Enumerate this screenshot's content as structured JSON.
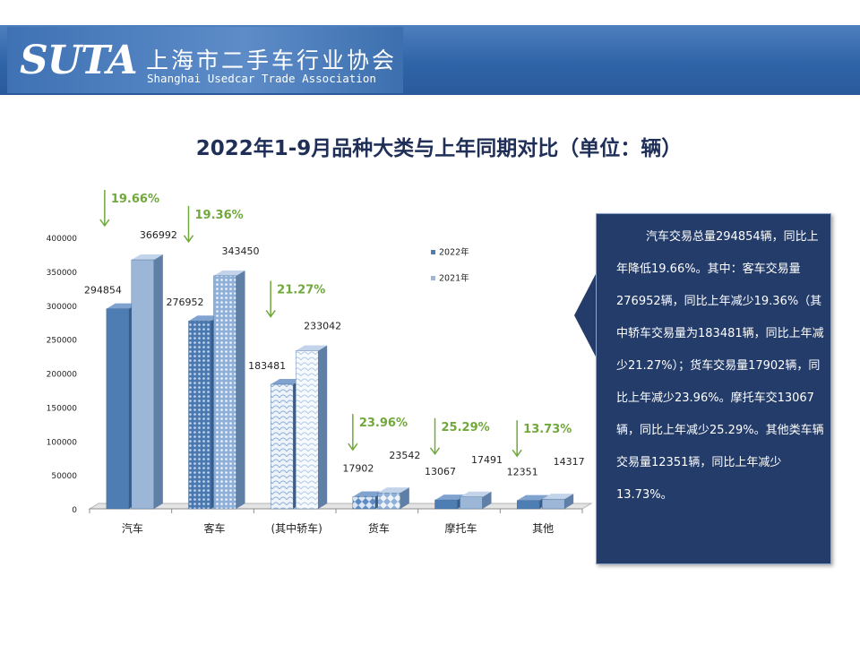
{
  "header": {
    "logo_mark": "SUTA",
    "org_name_cn": "上海市二手车行业协会",
    "org_name_en": "Shanghai Usedcar Trade Association"
  },
  "page_title": "2022年1-9月品种大类与上年同期对比（单位：辆）",
  "chart_data": {
    "type": "bar",
    "title": "2022年1-9月品种大类与上年同期对比（单位：辆）",
    "categories": [
      "汽车",
      "客车",
      "(其中轿车)",
      "货车",
      "摩托车",
      "其他"
    ],
    "series": [
      {
        "name": "2022年",
        "values": [
          294854,
          276952,
          183481,
          17902,
          13067,
          12351
        ]
      },
      {
        "name": "2021年",
        "values": [
          366992,
          343450,
          233042,
          23542,
          17491,
          14317
        ]
      }
    ],
    "change_labels": [
      "19.66%",
      "19.36%",
      "21.27%",
      "23.96%",
      "25.29%",
      "13.73%"
    ],
    "change_direction": "down",
    "ylim": [
      0,
      400000
    ],
    "yticks": [
      0,
      50000,
      100000,
      150000,
      200000,
      250000,
      300000,
      350000,
      400000
    ],
    "grid": false,
    "legend_position": "upper-right",
    "colors": {
      "series_2022": "#4e7db3",
      "series_2021": "#9cb6d8",
      "change": "#70a83c"
    }
  },
  "callout": {
    "text": "汽车交易总量294854辆，同比上年降低19.66%。其中：客车交易量276952辆，同比上年减少19.36%（其中轿车交易量为183481辆，同比上年减少21.27%）；货车交易量17902辆，同比上年减少23.96%。摩托车交13067辆，同比上年减少25.29%。其他类车辆交易量12351辆，同比上年减少13.73%。"
  }
}
